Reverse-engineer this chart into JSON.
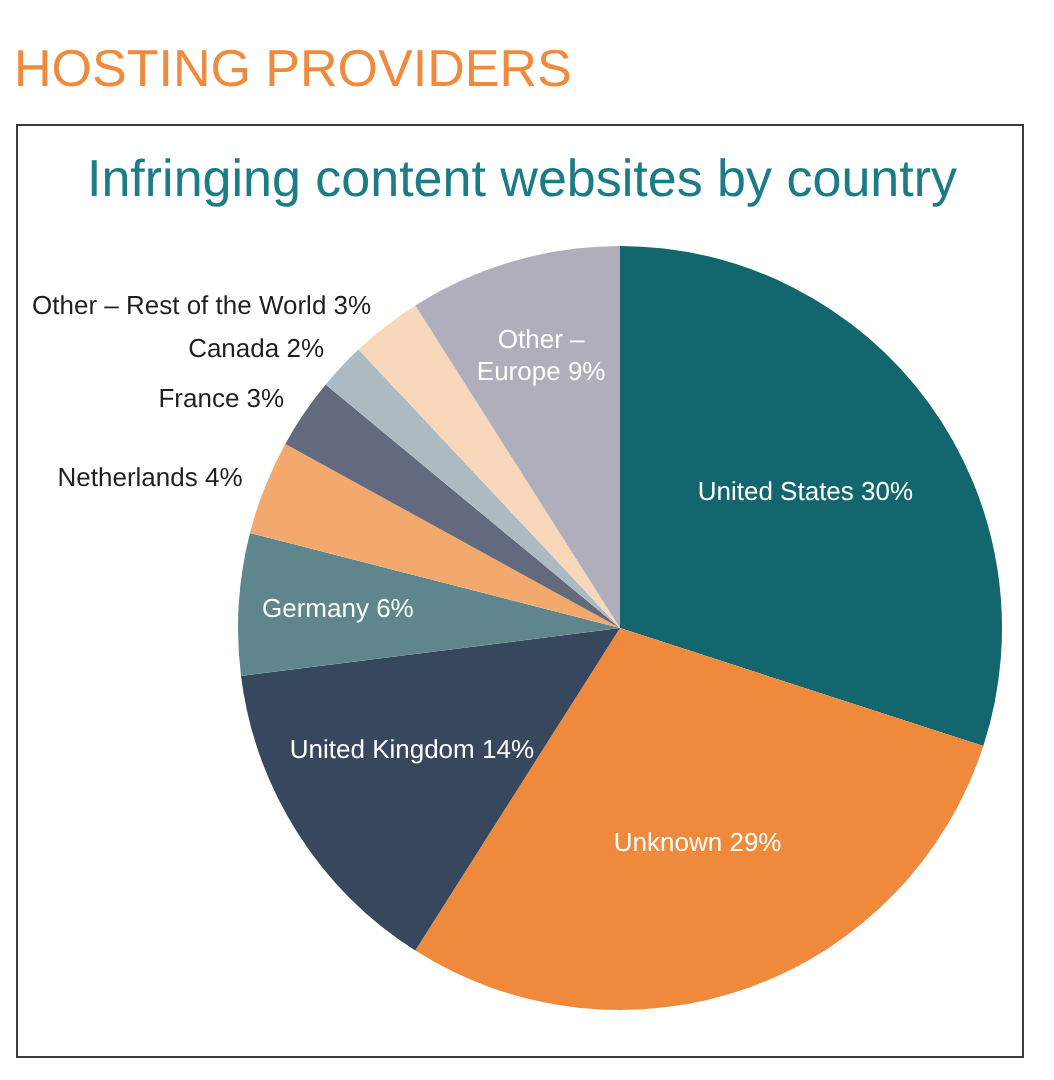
{
  "chart_data": {
    "type": "pie",
    "title": "HOSTING PROVIDERS",
    "subtitle": "Infringing content websites by country",
    "categories": [
      "United States",
      "Unknown",
      "United Kingdom",
      "Germany",
      "Netherlands",
      "France",
      "Canada",
      "Other – Rest of the World",
      "Other – Europe"
    ],
    "values": [
      30,
      29,
      14,
      6,
      4,
      3,
      2,
      3,
      9
    ],
    "value_labels": [
      "30%",
      "29%",
      "14%",
      "6%",
      "4%",
      "3%",
      "2%",
      "3%",
      "9%"
    ],
    "colors": [
      "#13666e",
      "#ef8a3c",
      "#36475e",
      "#5e868c",
      "#f3a96e",
      "#636a7d",
      "#adbac1",
      "#f9d7bb",
      "#afaebb"
    ]
  }
}
